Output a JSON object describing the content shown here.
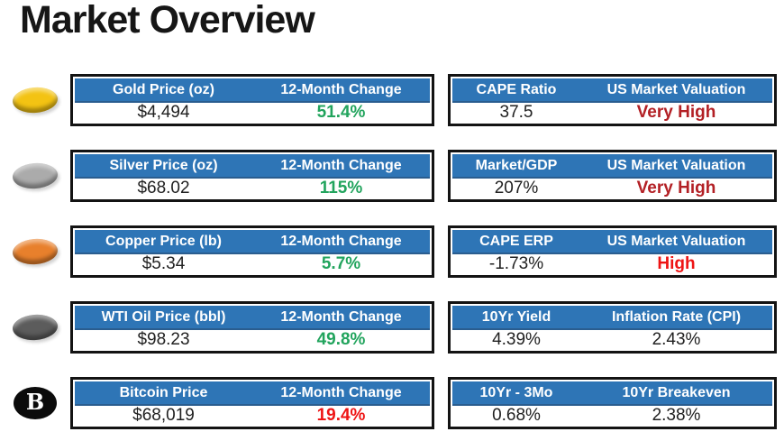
{
  "title": "Market Overview",
  "colors": {
    "header_bg": "#2E75B6",
    "header_border": "#2A5D8F",
    "header_text": "#FFFFFF",
    "table_border": "#131313",
    "value_text": "#212121",
    "green": "#22A45D",
    "bright_red": "#EE1414",
    "dark_red": "#B32025",
    "black_value": "#212121"
  },
  "icons": [
    {
      "label": "gold coin",
      "color": "#F3C313"
    },
    {
      "label": "silver coin",
      "color": "#ABABAB"
    },
    {
      "label": "copper coin",
      "color": "#E8802C"
    },
    {
      "label": "oil coin",
      "color": "#5C5C5C"
    },
    {
      "label": "bitcoin coin",
      "color": "#0B0B0B",
      "symbol": "B"
    }
  ],
  "left_tables": [
    {
      "headers": [
        "Gold Price (oz)",
        "12-Month Change"
      ],
      "value": "$4,494",
      "change": "51.4%",
      "change_color": "#22A45D"
    },
    {
      "headers": [
        "Silver Price (oz)",
        "12-Month Change"
      ],
      "value": "$68.02",
      "change": "115%",
      "change_color": "#22A45D"
    },
    {
      "headers": [
        "Copper Price (lb)",
        "12-Month Change"
      ],
      "value": "$5.34",
      "change": "5.7%",
      "change_color": "#22A45D"
    },
    {
      "headers": [
        "WTI Oil Price (bbl)",
        "12-Month Change"
      ],
      "value": "$98.23",
      "change": "49.8%",
      "change_color": "#22A45D"
    },
    {
      "headers": [
        "Bitcoin Price",
        "12-Month Change"
      ],
      "value": "$68,019",
      "change": "19.4%",
      "change_color": "#EE1414"
    }
  ],
  "right_tables": [
    {
      "headers": [
        "CAPE Ratio",
        "US Market Valuation"
      ],
      "value": "37.5",
      "value2": "Very High",
      "value2_color": "#B32025",
      "value2_bold": true
    },
    {
      "headers": [
        "Market/GDP",
        "US Market Valuation"
      ],
      "value": "207%",
      "value2": "Very High",
      "value2_color": "#B32025",
      "value2_bold": true
    },
    {
      "headers": [
        "CAPE ERP",
        "US Market Valuation"
      ],
      "value": "-1.73%",
      "value2": "High",
      "value2_color": "#EE1414",
      "value2_bold": true
    },
    {
      "headers": [
        "10Yr Yield",
        "Inflation Rate (CPI)"
      ],
      "value": "4.39%",
      "value2": "2.43%",
      "value2_color": "#212121",
      "value2_bold": false
    },
    {
      "headers": [
        "10Yr - 3Mo",
        "10Yr Breakeven"
      ],
      "value": "0.68%",
      "value2": "2.38%",
      "value2_color": "#212121",
      "value2_bold": false
    }
  ]
}
